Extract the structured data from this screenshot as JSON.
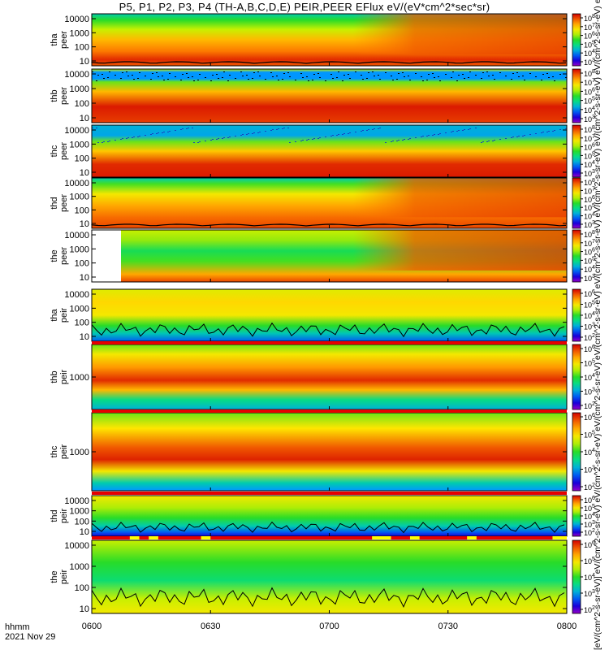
{
  "title": "P5, P1, P2, P3, P4 (TH-A,B,C,D,E) PEIR,PEER EFlux eV/(eV*cm^2*sec*sr)",
  "colorbar_unit_label": "[eV/(cm^2-s-sr-eV)] eV/(cm^2-s-sr-eV) eV/(cm^2-s-sr-eV) eV/(cm^2-s-sr-eV) eV/(cm^2-s-sr-eV) eV/(cm^2-s-sr-eV) eV/(cm^2-s-sr-eV) eV/(cm^2-s-sr-eV) eV/(cm^2-s-sr-eV) eV/(cm^2-s-sr-eV)",
  "footer": {
    "time_format": "hhmm",
    "date": "2021 Nov 29"
  },
  "colors": {
    "heatmap_low": "#1e1ec8",
    "heatmap_high": "#dc0000",
    "contour": "#000000",
    "status_bar": "#e60000",
    "status_gap": "#ffff00"
  },
  "chart_data": {
    "type": "heatmap",
    "x_ticks": [
      "0600",
      "0630",
      "0700",
      "0730",
      "0800"
    ],
    "x_range": [
      "06:00",
      "08:00"
    ],
    "energy_axis": "log",
    "panels": [
      {
        "name": "tha peer",
        "line1": "tha",
        "line2": "peer",
        "y_ticks": [
          "10000",
          "1000",
          "100",
          "10"
        ],
        "colorbar_ticks": [
          "10^8",
          "10^7",
          "10^6",
          "10^5",
          "10^4",
          "10^3"
        ]
      },
      {
        "name": "thb peer",
        "line1": "thb",
        "line2": "peer",
        "y_ticks": [
          "10000",
          "1000",
          "100",
          "10"
        ],
        "colorbar_ticks": [
          "10^8",
          "10^7",
          "10^6",
          "10^5",
          "10^4",
          "10^3"
        ]
      },
      {
        "name": "thc peer",
        "line1": "thc",
        "line2": "peer",
        "y_ticks": [
          "10000",
          "1000",
          "100",
          "10"
        ],
        "colorbar_ticks": [
          "10^8",
          "10^7",
          "10^6",
          "10^5",
          "10^4",
          "10^3"
        ]
      },
      {
        "name": "thd peer",
        "line1": "thd",
        "line2": "peer",
        "y_ticks": [
          "10000",
          "1000",
          "100",
          "10"
        ],
        "colorbar_ticks": [
          "10^8",
          "10^7",
          "10^6",
          "10^5",
          "10^4",
          "10^3"
        ]
      },
      {
        "name": "the peer",
        "line1": "the",
        "line2": "peer",
        "y_ticks": [
          "10000",
          "1000",
          "100",
          "10"
        ],
        "colorbar_ticks": [
          "10^8",
          "10^7",
          "10^6",
          "10^5",
          "10^4",
          "10^3"
        ]
      },
      {
        "name": "tha peir",
        "line1": "tha",
        "line2": "peir",
        "y_ticks": [
          "10000",
          "1000",
          "100",
          "10"
        ],
        "colorbar_ticks": [
          "10^6",
          "10^5",
          "10^4",
          "10^3",
          "10^2"
        ]
      },
      {
        "name": "thb peir",
        "line1": "thb",
        "line2": "peir",
        "y_ticks": [
          "1000"
        ],
        "colorbar_ticks": [
          "10^6",
          "10^5",
          "10^4",
          "10^3",
          "10^2"
        ]
      },
      {
        "name": "thc peir",
        "line1": "thc",
        "line2": "peir",
        "y_ticks": [
          "1000"
        ],
        "colorbar_ticks": [
          "10^6",
          "10^5",
          "10^4",
          "10^3",
          "10^2"
        ]
      },
      {
        "name": "thd peir",
        "line1": "thd",
        "line2": "peir",
        "y_ticks": [
          "10000",
          "1000",
          "100",
          "10"
        ],
        "colorbar_ticks": [
          "10^6",
          "10^5",
          "10^4",
          "10^3",
          "10^2"
        ]
      },
      {
        "name": "the peir",
        "line1": "the",
        "line2": "peir",
        "y_ticks": [
          "10000",
          "1000",
          "100",
          "10"
        ],
        "colorbar_ticks": [
          "10^6",
          "10^5",
          "10^4",
          "10^3",
          "10^2"
        ]
      }
    ]
  }
}
